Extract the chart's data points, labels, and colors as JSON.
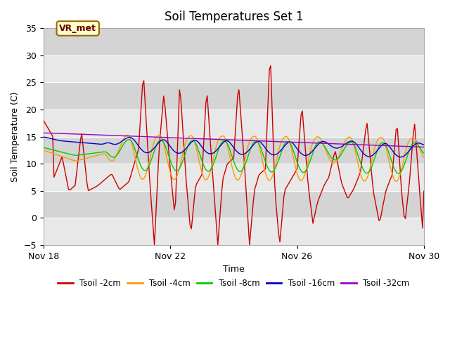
{
  "title": "Soil Temperatures Set 1",
  "xlabel": "Time",
  "ylabel": "Soil Temperature (C)",
  "ylim": [
    -5,
    35
  ],
  "yticks": [
    -5,
    0,
    5,
    10,
    15,
    20,
    25,
    30,
    35
  ],
  "x_start": 0,
  "x_end": 12,
  "xtick_positions": [
    0,
    4,
    8,
    12
  ],
  "xtick_labels": [
    "Nov 18",
    "Nov 22",
    "Nov 26",
    "Nov 30"
  ],
  "band_colors": [
    "#e8e8e8",
    "#d8d8d8"
  ],
  "series": [
    {
      "label": "Tsoil -2cm",
      "color": "#cc0000"
    },
    {
      "label": "Tsoil -4cm",
      "color": "#ff9900"
    },
    {
      "label": "Tsoil -8cm",
      "color": "#00cc00"
    },
    {
      "label": "Tsoil -16cm",
      "color": "#0000cc"
    },
    {
      "label": "Tsoil -32cm",
      "color": "#9900bb"
    }
  ],
  "annotation_text": "VR_met",
  "bg_color": "#e8e8e8"
}
